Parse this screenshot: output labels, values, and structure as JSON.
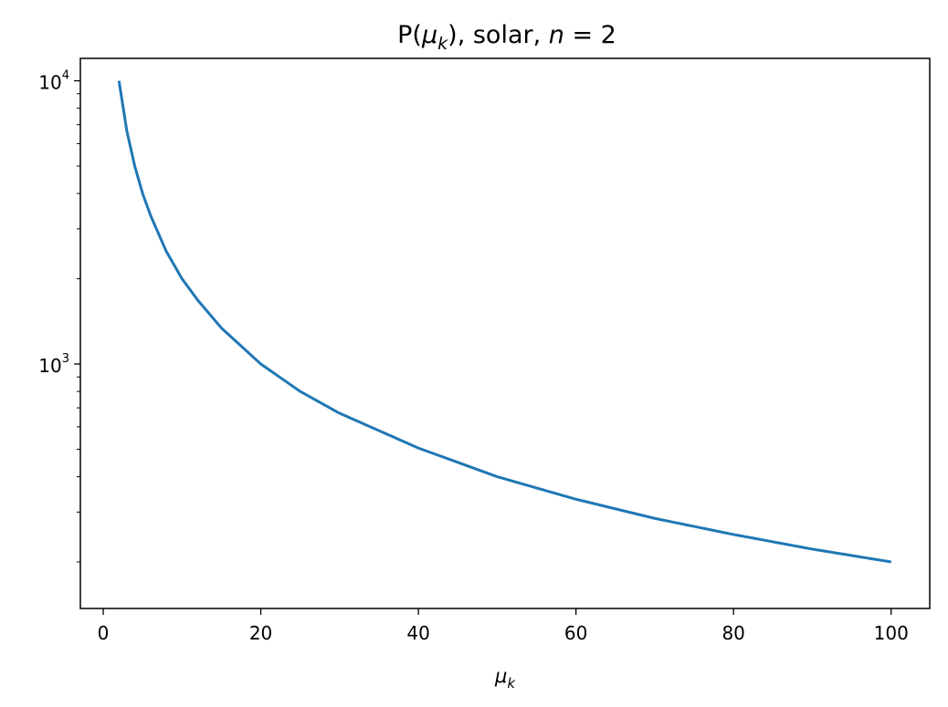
{
  "chart_data": {
    "type": "line",
    "title": {
      "prefix": "P(",
      "symbol": "μ",
      "sub": "k",
      "suffix": "), solar, ",
      "var": "n",
      "eq": " = 2"
    },
    "xlabel": {
      "symbol": "μ",
      "sub": "k"
    },
    "ylabel": "",
    "xscale": "linear",
    "yscale": "log",
    "xlim": [
      -2.9,
      104.9
    ],
    "ylim": [
      137,
      12000
    ],
    "xticks": [
      0,
      20,
      40,
      60,
      80,
      100
    ],
    "xtick_labels": [
      "0",
      "20",
      "40",
      "60",
      "80",
      "100"
    ],
    "yticks_major": [
      {
        "base": "10",
        "exp": "3",
        "value": 1000
      },
      {
        "base": "10",
        "exp": "4",
        "value": 10000
      }
    ],
    "yticks_minor": [
      200,
      300,
      400,
      500,
      600,
      700,
      800,
      900,
      2000,
      3000,
      4000,
      5000,
      6000,
      7000,
      8000,
      9000
    ],
    "grid": false,
    "series": [
      {
        "color": "#1f77b4",
        "x": [
          2,
          3,
          4,
          5,
          6,
          8,
          10,
          12,
          15,
          20,
          25,
          30,
          40,
          50,
          60,
          70,
          80,
          90,
          100
        ],
        "y": [
          10000,
          6650,
          5000,
          4000,
          3350,
          2500,
          2000,
          1680,
          1340,
          1000,
          800,
          670,
          505,
          400,
          333,
          285,
          250,
          222,
          200
        ]
      }
    ]
  }
}
